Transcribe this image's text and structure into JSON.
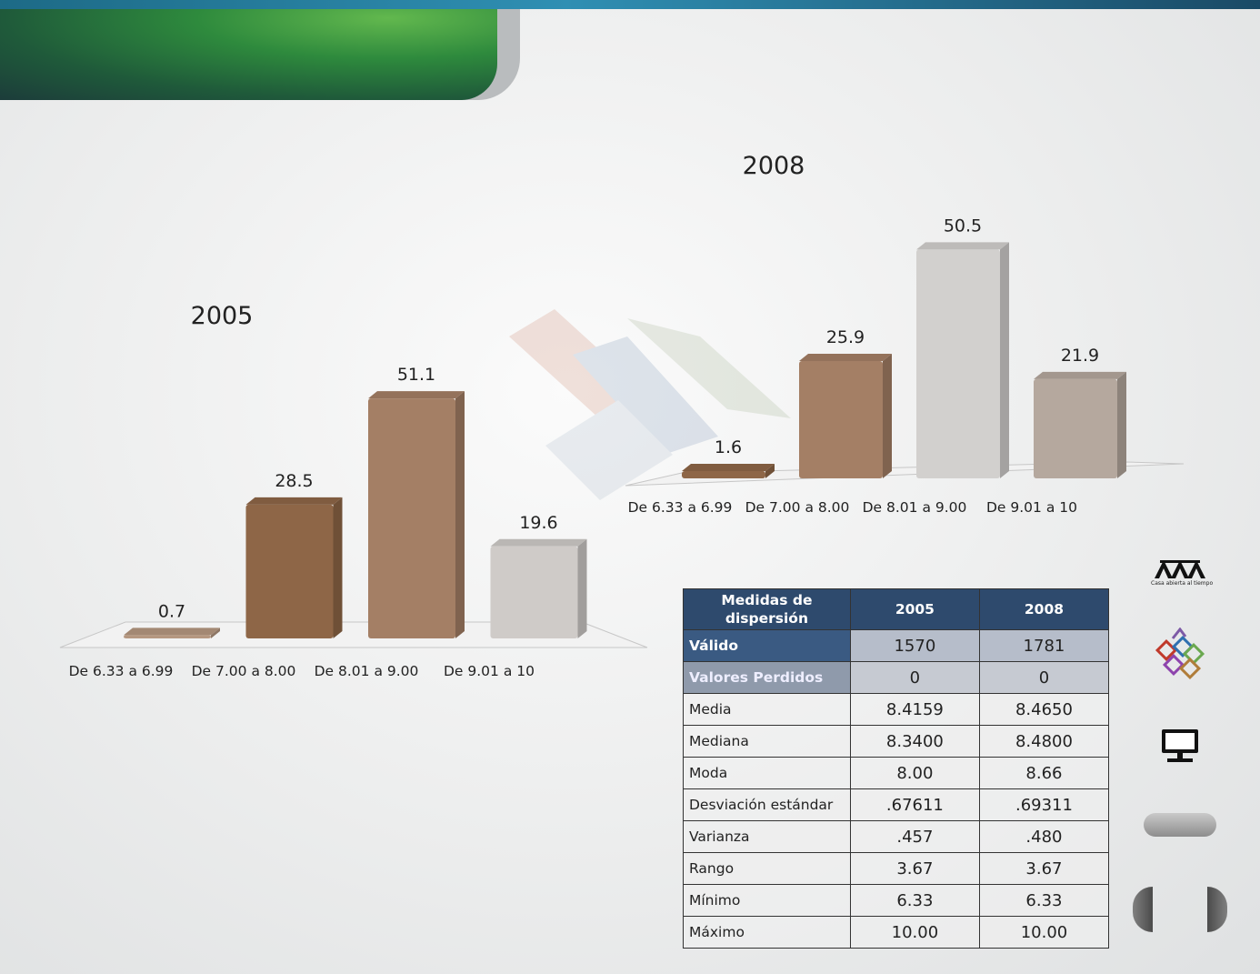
{
  "chart_data": [
    {
      "type": "bar",
      "title": "2005",
      "categories": [
        "De 6.33 a 6.99",
        "De 7.00 a 8.00",
        "De 8.01 a 9.00",
        "De 9.01 a 10"
      ],
      "values": [
        0.7,
        28.5,
        51.1,
        19.6
      ],
      "value_labels": [
        "0.7",
        "28.5",
        "51.1",
        "19.6"
      ],
      "colors": [
        "#b59780",
        "#8e6647",
        "#a47f65",
        "#cfcbc8"
      ],
      "xlabel": "",
      "ylabel": "",
      "ylim": [
        0,
        55
      ],
      "grid": false,
      "legend": "none",
      "style": "3d-columns"
    },
    {
      "type": "bar",
      "title": "2008",
      "categories": [
        "De 6.33 a 6.99",
        "De 7.00 a 8.00",
        "De 8.01 a 9.00",
        "De 9.01 a 10"
      ],
      "values": [
        1.6,
        25.9,
        50.5,
        21.9
      ],
      "value_labels": [
        "1.6",
        "25.9",
        "50.5",
        "21.9"
      ],
      "colors": [
        "#8e6647",
        "#a47f65",
        "#d2d0ce",
        "#b5a89e"
      ],
      "xlabel": "",
      "ylabel": "",
      "ylim": [
        0,
        55
      ],
      "grid": false,
      "legend": "none",
      "style": "3d-columns"
    },
    {
      "type": "table",
      "header": [
        "Medidas  de dispersión",
        "2005",
        "2008"
      ],
      "rows": [
        [
          "Válido",
          "1570",
          "1781"
        ],
        [
          "Valores Perdidos",
          "0",
          "0"
        ],
        [
          "Media",
          "8.4159",
          "8.4650"
        ],
        [
          "Mediana",
          "8.3400",
          "8.4800"
        ],
        [
          "Moda",
          "8.00",
          "8.66"
        ],
        [
          "Desviación estándar",
          ".67611",
          ".69311"
        ],
        [
          "Varianza",
          ".457",
          ".480"
        ],
        [
          "Rango",
          "3.67",
          "3.67"
        ],
        [
          "Mínimo",
          "6.33",
          "6.33"
        ],
        [
          "Máximo",
          "10.00",
          "10.00"
        ]
      ]
    }
  ],
  "sidebar": {
    "logo_caption": "Casa abierta al tiempo",
    "icons": [
      "uam-logo-icon",
      "blocks-icon",
      "monitor-icon"
    ]
  },
  "colors": {
    "header_green": "#2e8a3d",
    "table_header": "#2e4a6d",
    "top_bar": "#2f8fb3"
  }
}
